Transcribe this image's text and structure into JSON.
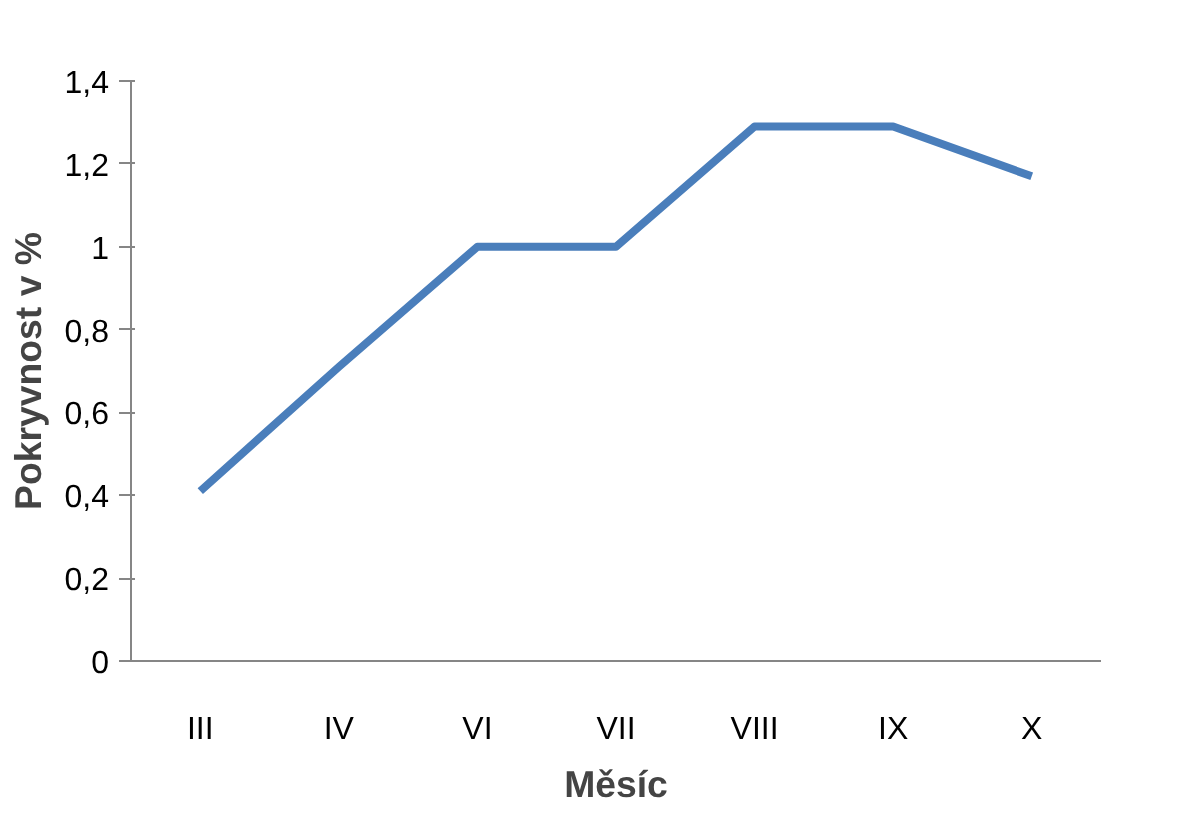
{
  "chart_data": {
    "type": "line",
    "xlabel": "Měsíc",
    "ylabel": "Pokryvnost v %",
    "categories": [
      "III",
      "IV",
      "VI",
      "VII",
      "VIII",
      "IX",
      "X"
    ],
    "series": [
      {
        "color": "#4a7ebb",
        "values": [
          0.41,
          0.71,
          1.0,
          1.0,
          1.29,
          1.29,
          1.17
        ]
      }
    ],
    "ylim": [
      0,
      1.4
    ],
    "yticks": [
      0,
      {
        "value": 0.2,
        "label": "0,2"
      },
      {
        "value": 0.4,
        "label": "0,4"
      },
      {
        "value": 0.6,
        "label": "0,6"
      },
      {
        "value": 0.8,
        "label": "0,8"
      },
      1,
      {
        "value": 1.2,
        "label": "1,2"
      },
      {
        "value": 1.4,
        "label": "1,4"
      }
    ],
    "grid": false,
    "marker": "none",
    "line_style": "solid"
  }
}
